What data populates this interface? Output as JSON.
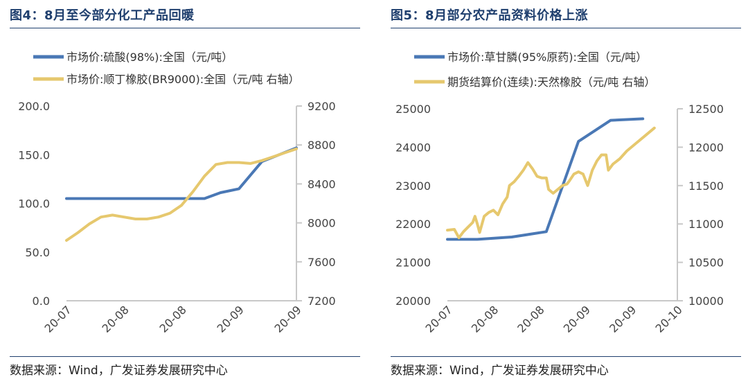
{
  "panels": [
    {
      "title": "图4：8月至今部分化工产品回暖",
      "source": "数据来源：Wind，广发证券发展研究中心",
      "chart_data": {
        "type": "line",
        "x_ticks": [
          "20-07",
          "20-08",
          "20-08",
          "20-09",
          "20-09"
        ],
        "left_axis": {
          "ticks": [
            "0.0",
            "50.0",
            "100.0",
            "150.0",
            "200.0"
          ],
          "ylim": [
            0,
            200
          ]
        },
        "right_axis": {
          "ticks": [
            "7200",
            "7600",
            "8000",
            "8400",
            "8800",
            "9200"
          ],
          "ylim": [
            7200,
            9200
          ]
        },
        "series": [
          {
            "name": "市场价:硫酸(98%):全国（元/吨）",
            "axis": "left",
            "color": "#4a78b5",
            "points": [
              [
                0,
                105
              ],
              [
                0.15,
                105
              ],
              [
                0.3,
                105
              ],
              [
                0.5,
                105
              ],
              [
                0.6,
                105
              ],
              [
                0.67,
                111
              ],
              [
                0.75,
                115
              ],
              [
                0.85,
                143
              ],
              [
                1,
                157
              ]
            ]
          },
          {
            "name": "市场价:顺丁橡胶(BR9000):全国（元/吨 右轴）",
            "axis": "right",
            "color": "#e6c86e",
            "points": [
              [
                0,
                7820
              ],
              [
                0.05,
                7900
              ],
              [
                0.1,
                7990
              ],
              [
                0.15,
                8060
              ],
              [
                0.2,
                8080
              ],
              [
                0.25,
                8060
              ],
              [
                0.3,
                8040
              ],
              [
                0.35,
                8040
              ],
              [
                0.4,
                8060
              ],
              [
                0.45,
                8100
              ],
              [
                0.5,
                8180
              ],
              [
                0.55,
                8320
              ],
              [
                0.6,
                8480
              ],
              [
                0.65,
                8600
              ],
              [
                0.7,
                8620
              ],
              [
                0.75,
                8620
              ],
              [
                0.8,
                8610
              ],
              [
                0.85,
                8640
              ],
              [
                0.9,
                8680
              ],
              [
                0.95,
                8720
              ],
              [
                1,
                8760
              ]
            ]
          }
        ]
      }
    },
    {
      "title": "图5：8月部分农产品资料价格上涨",
      "source": "数据来源：Wind，广发证券发展研究中心",
      "chart_data": {
        "type": "line",
        "x_ticks": [
          "20-07",
          "20-08",
          "20-08",
          "20-09",
          "20-09",
          "20-10"
        ],
        "left_axis": {
          "ticks": [
            "20000",
            "21000",
            "22000",
            "23000",
            "24000",
            "25000"
          ],
          "ylim": [
            20000,
            25000
          ]
        },
        "right_axis": {
          "ticks": [
            "10000",
            "10500",
            "11000",
            "11500",
            "12000",
            "12500"
          ],
          "ylim": [
            10000,
            12500
          ]
        },
        "series": [
          {
            "name": "市场价:草甘膦(95%原药):全国（元/吨）",
            "axis": "left",
            "color": "#4a78b5",
            "points": [
              [
                0,
                21600
              ],
              [
                0.13,
                21600
              ],
              [
                0.28,
                21660
              ],
              [
                0.43,
                21800
              ],
              [
                0.57,
                24150
              ],
              [
                0.71,
                24700
              ],
              [
                0.85,
                24740
              ]
            ]
          },
          {
            "name": "期货结算价(连续):天然橡胶（元/吨 右轴）",
            "axis": "right",
            "color": "#e6c86e",
            "points": [
              [
                0,
                10920
              ],
              [
                0.03,
                10930
              ],
              [
                0.05,
                10820
              ],
              [
                0.07,
                10900
              ],
              [
                0.09,
                10960
              ],
              [
                0.11,
                11020
              ],
              [
                0.12,
                11100
              ],
              [
                0.13,
                11000
              ],
              [
                0.14,
                10890
              ],
              [
                0.16,
                11100
              ],
              [
                0.18,
                11150
              ],
              [
                0.2,
                11180
              ],
              [
                0.22,
                11120
              ],
              [
                0.24,
                11260
              ],
              [
                0.26,
                11350
              ],
              [
                0.27,
                11500
              ],
              [
                0.29,
                11550
              ],
              [
                0.31,
                11620
              ],
              [
                0.33,
                11700
              ],
              [
                0.35,
                11800
              ],
              [
                0.37,
                11720
              ],
              [
                0.39,
                11620
              ],
              [
                0.41,
                11600
              ],
              [
                0.43,
                11600
              ],
              [
                0.44,
                11450
              ],
              [
                0.46,
                11400
              ],
              [
                0.48,
                11450
              ],
              [
                0.5,
                11500
              ],
              [
                0.52,
                11520
              ],
              [
                0.53,
                11560
              ],
              [
                0.55,
                11650
              ],
              [
                0.57,
                11680
              ],
              [
                0.59,
                11650
              ],
              [
                0.61,
                11500
              ],
              [
                0.63,
                11700
              ],
              [
                0.65,
                11820
              ],
              [
                0.67,
                11900
              ],
              [
                0.69,
                11900
              ],
              [
                0.7,
                11700
              ],
              [
                0.72,
                11780
              ],
              [
                0.75,
                11850
              ],
              [
                0.78,
                11950
              ],
              [
                0.82,
                12050
              ],
              [
                0.86,
                12150
              ],
              [
                0.9,
                12250
              ]
            ]
          }
        ]
      }
    }
  ]
}
